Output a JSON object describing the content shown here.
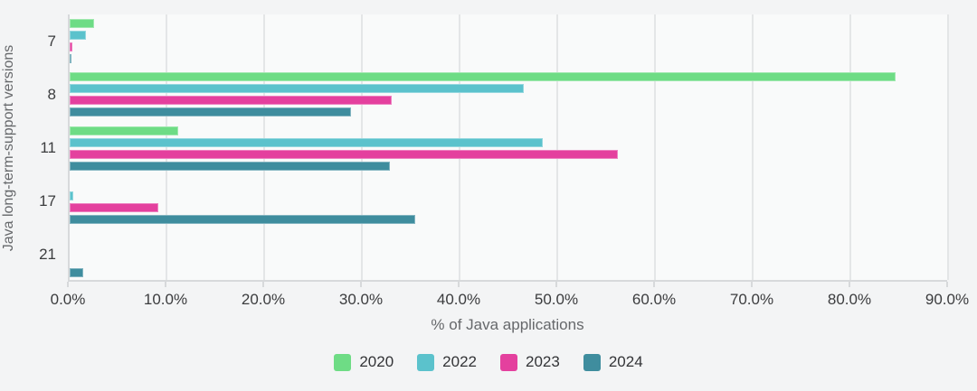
{
  "chart_data": {
    "type": "bar",
    "orientation": "horizontal",
    "title": "",
    "xlabel": "% of Java applications",
    "ylabel": "Java long-term-support versions",
    "categories": [
      "7",
      "8",
      "11",
      "17",
      "21"
    ],
    "series": [
      {
        "name": "2020",
        "color": "#6edc85",
        "values": [
          2.5,
          84.5,
          11.1,
          0,
          0
        ]
      },
      {
        "name": "2022",
        "color": "#5bc2cc",
        "values": [
          1.7,
          46.5,
          48.4,
          0.4,
          0
        ]
      },
      {
        "name": "2023",
        "color": "#e4409e",
        "values": [
          0.3,
          33.0,
          56.1,
          9.1,
          0
        ]
      },
      {
        "name": "2024",
        "color": "#3f8d9e",
        "values": [
          0.2,
          28.8,
          32.8,
          35.4,
          1.4
        ]
      }
    ],
    "xlim": [
      0,
      90
    ],
    "xticks": [
      "0.0%",
      "10.0%",
      "20.0%",
      "30.0%",
      "40.0%",
      "50.0%",
      "60.0%",
      "70.0%",
      "80.0%",
      "90.0%"
    ],
    "grid": true,
    "legend_position": "bottom"
  },
  "colors": {
    "page_background": "#f3f4f5",
    "plot_background": "#f9fafa",
    "gridline": "#e4e6e7",
    "axis_line": "#d7d9db",
    "tick_text": "#3b3c3e",
    "axis_title_text": "#66686b"
  }
}
